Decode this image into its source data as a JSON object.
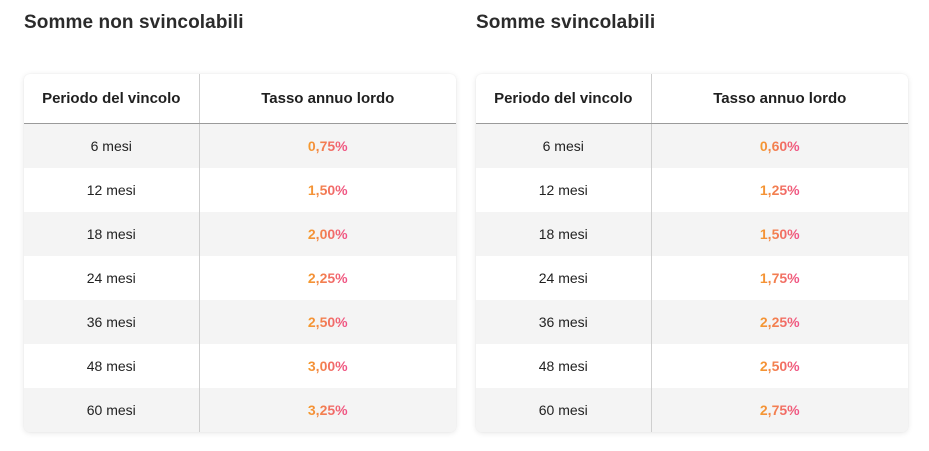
{
  "colors": {
    "rate_gradient_start": "#f59b2b",
    "rate_gradient_end": "#ef4f8b",
    "row_stripe": "#f4f4f4"
  },
  "sections": [
    {
      "title": "Somme non svincolabili",
      "headers": {
        "period": "Periodo del vincolo",
        "rate": "Tasso annuo lordo"
      },
      "rows": [
        {
          "period": "6 mesi",
          "rate": "0,75%"
        },
        {
          "period": "12 mesi",
          "rate": "1,50%"
        },
        {
          "period": "18 mesi",
          "rate": "2,00%"
        },
        {
          "period": "24 mesi",
          "rate": "2,25%"
        },
        {
          "period": "36 mesi",
          "rate": "2,50%"
        },
        {
          "period": "48 mesi",
          "rate": "3,00%"
        },
        {
          "period": "60 mesi",
          "rate": "3,25%"
        }
      ]
    },
    {
      "title": "Somme svincolabili",
      "headers": {
        "period": "Periodo del vincolo",
        "rate": "Tasso annuo lordo"
      },
      "rows": [
        {
          "period": "6 mesi",
          "rate": "0,60%"
        },
        {
          "period": "12 mesi",
          "rate": "1,25%"
        },
        {
          "period": "18 mesi",
          "rate": "1,50%"
        },
        {
          "period": "24 mesi",
          "rate": "1,75%"
        },
        {
          "period": "36 mesi",
          "rate": "2,25%"
        },
        {
          "period": "48 mesi",
          "rate": "2,50%"
        },
        {
          "period": "60 mesi",
          "rate": "2,75%"
        }
      ]
    }
  ]
}
